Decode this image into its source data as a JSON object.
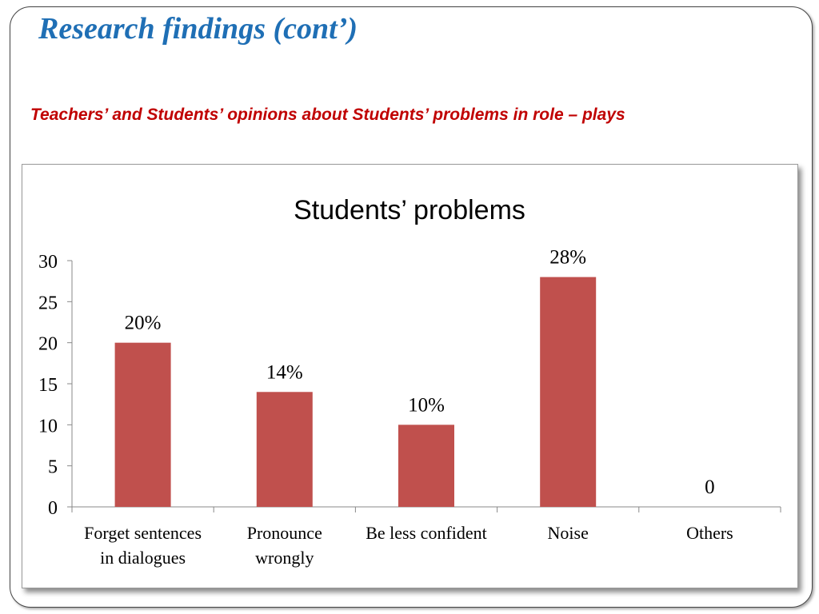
{
  "slide": {
    "title": "Research findings (cont’)",
    "subtitle": "Teachers’ and Students’ opinions about Students’ problems in role – plays"
  },
  "colors": {
    "title": "#1f6fb5",
    "subtitle": "#c00000",
    "bar": "#c0504d"
  },
  "chart_data": {
    "type": "bar",
    "title": "Students’ problems",
    "categories": [
      [
        "Forget sentences",
        "in dialogues"
      ],
      [
        "Pronounce",
        "wrongly"
      ],
      [
        "Be less confident"
      ],
      [
        "Noise"
      ],
      [
        "Others"
      ]
    ],
    "values": [
      20,
      14,
      10,
      28,
      0
    ],
    "data_labels": [
      "20%",
      "14%",
      "10%",
      "28%",
      "0"
    ],
    "xlabel": "",
    "ylabel": "",
    "ylim": [
      0,
      30
    ],
    "yticks": [
      0,
      5,
      10,
      15,
      20,
      25,
      30
    ],
    "grid": false,
    "legend": "none"
  }
}
